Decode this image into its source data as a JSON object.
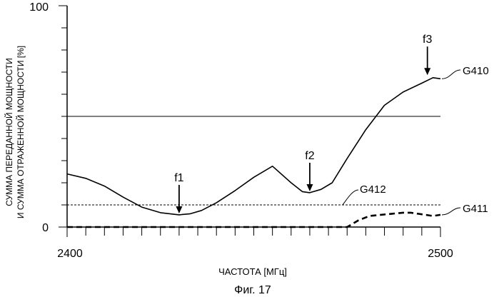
{
  "chart_data": {
    "type": "line",
    "caption": "Фиг. 17",
    "xlabel": "ЧАСТОТА [МГц]",
    "ylabel_line1": "СУММА ПЕРЕДАННОЙ МОЩНОСТИ",
    "ylabel_line2": "И СУММА ОТРАЖЕННОЙ МОЩНОСТИ [%]",
    "xlim": [
      2400,
      2500
    ],
    "ylim": [
      0,
      100
    ],
    "x_tick_labels": [
      "2400",
      "2500"
    ],
    "y_tick_labels": [
      "0",
      "100"
    ],
    "grid": false,
    "reference_line_y": 50,
    "series": [
      {
        "name": "G410",
        "style": "solid",
        "x": [
          2400,
          2405,
          2410,
          2415,
          2420,
          2425,
          2430,
          2433,
          2436,
          2440,
          2445,
          2450,
          2455,
          2460,
          2463,
          2465,
          2468,
          2471,
          2475,
          2480,
          2485,
          2490,
          2495,
          2498,
          2500
        ],
        "y": [
          24,
          22,
          18.5,
          13.5,
          9,
          6.5,
          5.5,
          6,
          7.5,
          11,
          16.5,
          22.5,
          27.5,
          20,
          16,
          15.5,
          17,
          20,
          31,
          44,
          55,
          61,
          65,
          67.5,
          67
        ]
      },
      {
        "name": "G411",
        "style": "dashed-bold",
        "x": [
          2400,
          2410,
          2420,
          2430,
          2440,
          2450,
          2460,
          2470,
          2475,
          2478,
          2481,
          2484,
          2487,
          2490,
          2492,
          2494,
          2496,
          2498,
          2500
        ],
        "y": [
          0,
          0,
          0,
          0,
          0,
          0,
          0,
          0,
          0,
          3,
          5,
          5.5,
          6,
          6.5,
          6.5,
          6,
          5.5,
          5,
          5.5
        ]
      },
      {
        "name": "G412",
        "style": "dashed-thin",
        "x": [
          2400,
          2500
        ],
        "y": [
          10,
          10
        ]
      }
    ],
    "annotations": [
      {
        "label": "f1",
        "x": 2430,
        "y": 5.5
      },
      {
        "label": "f2",
        "x": 2465,
        "y": 15.5
      },
      {
        "label": "f3",
        "x": 2496.5,
        "y": 68
      }
    ]
  }
}
